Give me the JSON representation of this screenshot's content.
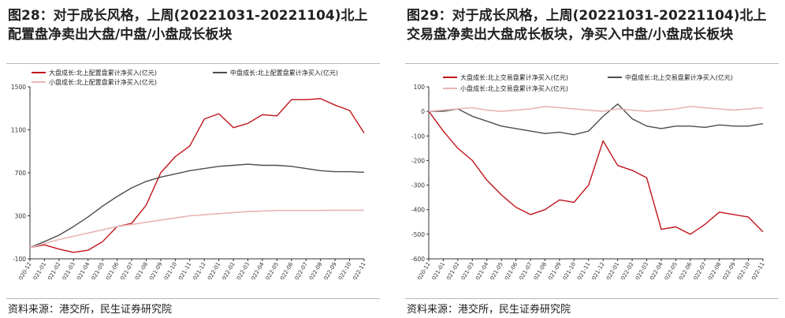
{
  "chart_data": [
    {
      "type": "line",
      "title": "图28：对于成长风格，上周(20221031-20221104)北上配置盘净卖出大盘/中盘/小盘成长板块",
      "source": "资料来源：港交所，民生证券研究院",
      "x": [
        "2020-12",
        "2021-01",
        "2021-02",
        "2021-03",
        "2021-04",
        "2021-05",
        "2021-06",
        "2021-07",
        "2021-08",
        "2021-09",
        "2021-10",
        "2021-11",
        "2021-12",
        "2022-01",
        "2022-02",
        "2022-03",
        "2022-04",
        "2022-05",
        "2022-06",
        "2022-07",
        "2022-08",
        "2022-09",
        "2022-10",
        "2022-11"
      ],
      "ylim": [
        -100,
        1500
      ],
      "yticks": [
        -100,
        300,
        700,
        1100,
        1500
      ],
      "grid": false,
      "legend_position": "top",
      "series": [
        {
          "name": "大盘成长:北上配置盘累计净买入(亿元)",
          "color": "#c0141a",
          "values": [
            5,
            30,
            -10,
            -40,
            -20,
            60,
            200,
            230,
            400,
            700,
            850,
            950,
            1200,
            1250,
            1120,
            1160,
            1240,
            1230,
            1380,
            1380,
            1390,
            1330,
            1280,
            1070
          ]
        },
        {
          "name": "中盘成长:北上配置盘累计净买入(亿元)",
          "color": "#4d4d4d",
          "values": [
            5,
            60,
            120,
            200,
            290,
            390,
            480,
            560,
            620,
            660,
            690,
            720,
            740,
            760,
            770,
            780,
            770,
            770,
            760,
            740,
            720,
            710,
            710,
            705
          ]
        },
        {
          "name": "小盘成长:北上配置盘累计净买入(亿元)",
          "color": "#e8b4b4",
          "values": [
            5,
            40,
            80,
            110,
            140,
            170,
            200,
            220,
            240,
            260,
            280,
            300,
            310,
            320,
            330,
            340,
            345,
            350,
            350,
            350,
            350,
            352,
            352,
            352
          ]
        }
      ]
    },
    {
      "type": "line",
      "title": "图29：对于成长风格，上周(20221031-20221104)北上交易盘净卖出大盘成长板块，净买入中盘/小盘成长板块",
      "source": "资料来源：港交所，民生证券研究院",
      "x": [
        "2020-12",
        "2021-01",
        "2021-02",
        "2021-03",
        "2021-04",
        "2021-05",
        "2021-06",
        "2021-07",
        "2021-08",
        "2021-09",
        "2021-10",
        "2021-11",
        "2021-12",
        "2022-01",
        "2022-02",
        "2022-03",
        "2022-04",
        "2022-05",
        "2022-06",
        "2022-07",
        "2022-08",
        "2022-09",
        "2022-10",
        "2022-11"
      ],
      "ylim": [
        -600,
        100
      ],
      "yticks": [
        -600,
        -500,
        -400,
        -300,
        -200,
        -100,
        0,
        100
      ],
      "grid": false,
      "legend_position": "top",
      "series": [
        {
          "name": "大盘成长:北上交易盘累计净买入(亿元)",
          "color": "#c0141a",
          "values": [
            0,
            -80,
            -150,
            -200,
            -280,
            -340,
            -390,
            -420,
            -400,
            -360,
            -370,
            -300,
            -120,
            -220,
            -240,
            -270,
            -480,
            -470,
            -500,
            -460,
            -410,
            -420,
            -430,
            -490
          ]
        },
        {
          "name": "中盘成长:北上交易盘累计净买入(亿元)",
          "color": "#4d4d4d",
          "values": [
            0,
            0,
            10,
            -20,
            -40,
            -60,
            -70,
            -80,
            -90,
            -85,
            -95,
            -80,
            -20,
            30,
            -30,
            -60,
            -70,
            -60,
            -60,
            -65,
            -55,
            -60,
            -60,
            -50
          ]
        },
        {
          "name": "小盘成长:北上交易盘累计净买入(亿元)",
          "color": "#e8b4b4",
          "values": [
            0,
            5,
            10,
            15,
            5,
            0,
            5,
            10,
            20,
            15,
            10,
            5,
            0,
            10,
            5,
            0,
            5,
            10,
            20,
            15,
            10,
            5,
            10,
            15
          ]
        }
      ]
    }
  ]
}
